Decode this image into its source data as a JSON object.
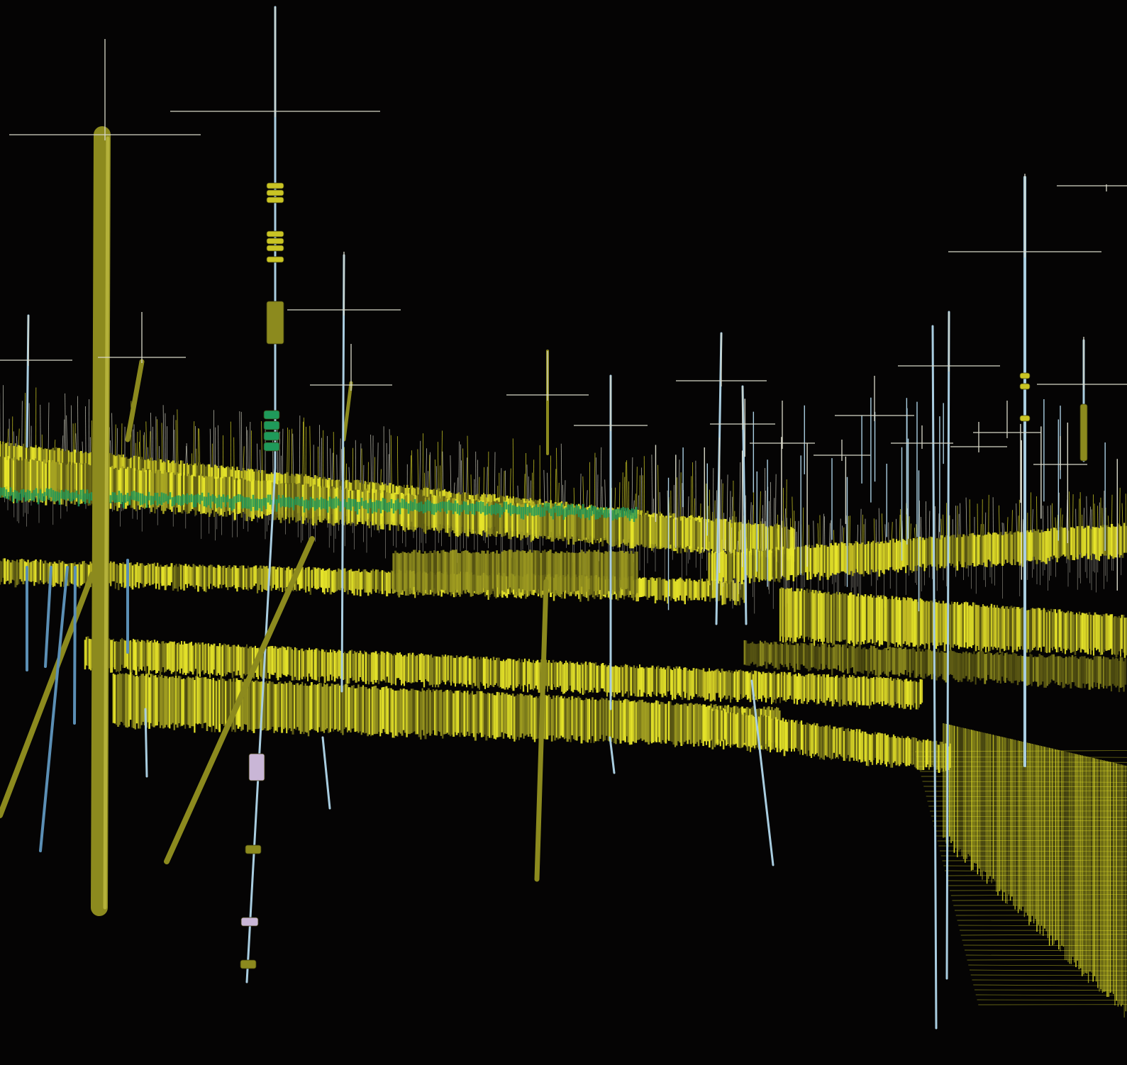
{
  "scene": {
    "background": "#050404",
    "colors": {
      "bright_yellow": "#e8e62a",
      "olive": "#8c8a1e",
      "dark_olive": "#5f5c14",
      "pale_blue": "#a9cde0",
      "steel_blue": "#5b8fb5",
      "green": "#1f9a5a",
      "lavender": "#c9b6d6",
      "grey_line": "#d8d8c8"
    },
    "icons": [
      "well-trajectory",
      "casing-cylinder",
      "perforation-ring",
      "plunge-marker"
    ]
  }
}
